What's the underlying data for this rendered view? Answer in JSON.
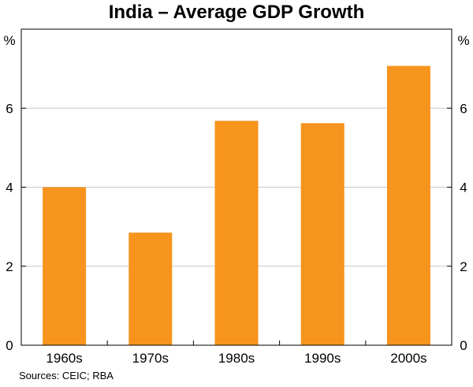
{
  "chart_data": {
    "type": "bar",
    "title": "India – Average GDP Growth",
    "categories": [
      "1960s",
      "1970s",
      "1980s",
      "1990s",
      "2000s"
    ],
    "values": [
      4.0,
      2.85,
      5.68,
      5.62,
      7.07
    ],
    "ylabel_left": "%",
    "ylabel_right": "%",
    "ylim": [
      0,
      8
    ],
    "yticks": [
      "0",
      "2",
      "4",
      "6"
    ],
    "gridlines": true,
    "bar_color": "#F7941D",
    "source": "Sources: CEIC; RBA"
  }
}
